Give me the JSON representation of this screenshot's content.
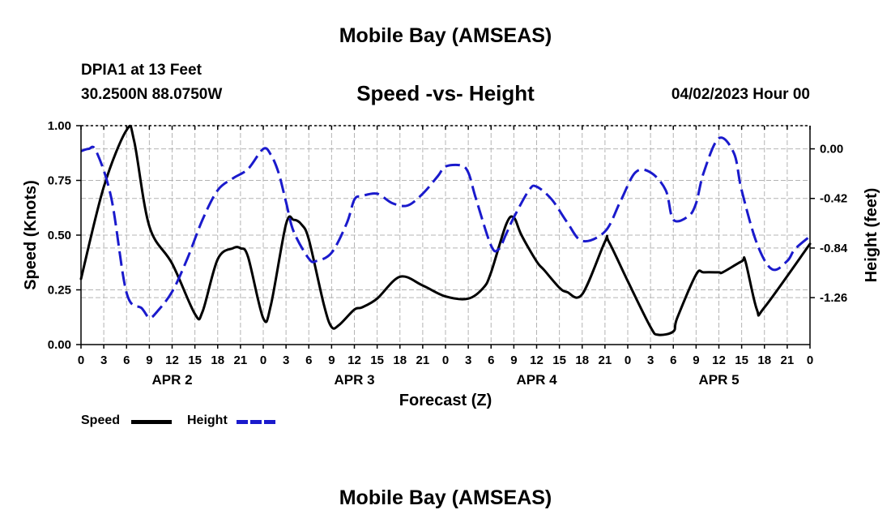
{
  "header": {
    "main_title": "Mobile Bay (AMSEAS)",
    "station_name": "DPIA1 at 13 Feet",
    "station_coords": "30.2500N  88.0750W",
    "run_time": "04/02/2023 Hour 00",
    "bottom_title": "Mobile Bay (AMSEAS)"
  },
  "colors": {
    "speed": "#000000",
    "height": "#1a1acc",
    "grid": "#b4b4b4"
  },
  "chart_data": {
    "type": "line",
    "title": "Speed -vs- Height",
    "xlabel": "Forecast (Z)",
    "ylabel": "Speed (Knots)",
    "ylabel_right": "Height (feet)",
    "xlim": [
      0,
      96
    ],
    "ylim": [
      0,
      1.0
    ],
    "ylim_right": [
      -1.6576,
      0.1962
    ],
    "x_ticks": [
      0,
      3,
      6,
      9,
      12,
      15,
      18,
      21,
      24,
      27,
      30,
      33,
      36,
      39,
      42,
      45,
      48,
      51,
      54,
      57,
      60,
      63,
      66,
      69,
      72,
      75,
      78,
      81,
      84,
      87,
      90,
      93,
      96
    ],
    "x_tick_labels": [
      "0",
      "3",
      "6",
      "9",
      "12",
      "15",
      "18",
      "21",
      "0",
      "3",
      "6",
      "9",
      "12",
      "15",
      "18",
      "21",
      "0",
      "3",
      "6",
      "9",
      "12",
      "15",
      "18",
      "21",
      "0",
      "3",
      "6",
      "9",
      "12",
      "15",
      "18",
      "21",
      "0"
    ],
    "y_ticks": [
      0,
      0.25,
      0.5,
      0.75,
      1.0
    ],
    "y_tick_labels": [
      "0.00",
      "0.25",
      "0.50",
      "0.75",
      "1.00"
    ],
    "y_ticks_right": [
      0.0,
      -0.42,
      -0.84,
      -1.26
    ],
    "y_tick_labels_right": [
      "0.00",
      "-0.42",
      "-0.84",
      "-1.26"
    ],
    "day_labels": [
      {
        "label": "APR 2",
        "x": 12
      },
      {
        "label": "APR 3",
        "x": 36
      },
      {
        "label": "APR 4",
        "x": 60
      },
      {
        "label": "APR 5",
        "x": 84
      }
    ],
    "series": [
      {
        "name": "Speed",
        "axis": "left",
        "style": "solid",
        "x": [
          0,
          3,
          6,
          7,
          9,
          12,
          15,
          16,
          18,
          20,
          21,
          22,
          24,
          25,
          27,
          28,
          29,
          30,
          32,
          33,
          34,
          36,
          37,
          39,
          42,
          45,
          48,
          51,
          53,
          54,
          56,
          57,
          58,
          60,
          61,
          63,
          64,
          66,
          69,
          69.5,
          72,
          75,
          76,
          78,
          78.5,
          81,
          82,
          84,
          84.5,
          87,
          87.5,
          89,
          90,
          96
        ],
        "values": [
          0.3,
          0.72,
          0.98,
          0.93,
          0.54,
          0.37,
          0.14,
          0.15,
          0.39,
          0.44,
          0.44,
          0.4,
          0.12,
          0.18,
          0.55,
          0.57,
          0.55,
          0.48,
          0.18,
          0.08,
          0.09,
          0.16,
          0.17,
          0.21,
          0.31,
          0.27,
          0.22,
          0.21,
          0.26,
          0.33,
          0.55,
          0.58,
          0.5,
          0.38,
          0.34,
          0.26,
          0.24,
          0.23,
          0.47,
          0.47,
          0.29,
          0.08,
          0.045,
          0.06,
          0.12,
          0.32,
          0.33,
          0.33,
          0.33,
          0.38,
          0.38,
          0.16,
          0.17,
          0.46
        ]
      },
      {
        "name": "Height",
        "axis": "right",
        "style": "dashed",
        "x": [
          0,
          1,
          2,
          4,
          6,
          8,
          9,
          10,
          12,
          14,
          16,
          18,
          20,
          22,
          24,
          25,
          26,
          27,
          28,
          30,
          31,
          33,
          35,
          36,
          37,
          39,
          41,
          43,
          45,
          47,
          48,
          50,
          51,
          52,
          54,
          55,
          56,
          57,
          59,
          60,
          62,
          64,
          66,
          69,
          71,
          73,
          75,
          77,
          78,
          80,
          81,
          82,
          84,
          86,
          87,
          89,
          91,
          93,
          94,
          96
        ],
        "values": [
          -0.02,
          0.0,
          -0.02,
          -0.42,
          -1.22,
          -1.35,
          -1.43,
          -1.38,
          -1.21,
          -0.93,
          -0.6,
          -0.35,
          -0.25,
          -0.17,
          0.0,
          -0.05,
          -0.2,
          -0.45,
          -0.7,
          -0.93,
          -0.95,
          -0.88,
          -0.63,
          -0.43,
          -0.4,
          -0.38,
          -0.46,
          -0.48,
          -0.38,
          -0.23,
          -0.15,
          -0.14,
          -0.2,
          -0.42,
          -0.82,
          -0.85,
          -0.72,
          -0.58,
          -0.35,
          -0.32,
          -0.43,
          -0.62,
          -0.78,
          -0.7,
          -0.45,
          -0.2,
          -0.2,
          -0.35,
          -0.6,
          -0.57,
          -0.46,
          -0.2,
          0.09,
          -0.04,
          -0.35,
          -0.8,
          -1.02,
          -0.95,
          -0.85,
          -0.74
        ]
      }
    ],
    "legend": [
      {
        "label": "Speed",
        "style": "solid"
      },
      {
        "label": "Height",
        "style": "dashed"
      }
    ]
  }
}
